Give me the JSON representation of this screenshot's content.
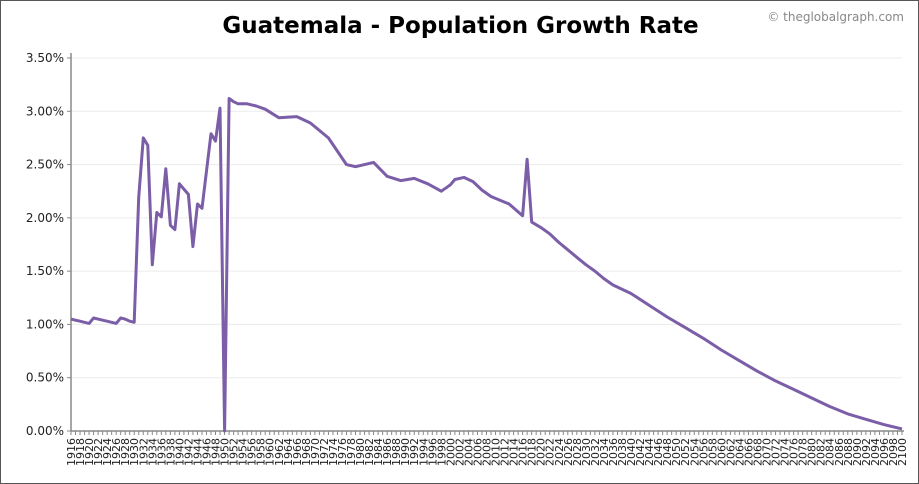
{
  "chart_data": {
    "type": "line",
    "title": "Guatemala - Population Growth Rate",
    "credit": "© theglobalgraph.com",
    "xlabel": "",
    "ylabel": "",
    "xlim": [
      1916,
      2100
    ],
    "ylim": [
      0,
      3.5
    ],
    "y_ticks": [
      "0.00%",
      "0.50%",
      "1.00%",
      "1.50%",
      "2.00%",
      "2.50%",
      "3.00%",
      "3.50%"
    ],
    "x_tick_step": 2,
    "grid": true,
    "line_color": "#7b5ea7",
    "series": [
      {
        "x": [
          1916,
          1917,
          1918,
          1919,
          1920,
          1921,
          1922,
          1923,
          1924,
          1925,
          1926,
          1927,
          1928,
          1929,
          1930,
          1931,
          1932,
          1933,
          1934,
          1935,
          1936,
          1937,
          1938,
          1939,
          1940,
          1941,
          1942,
          1943,
          1944,
          1945,
          1946,
          1947,
          1948,
          1949,
          1950,
          1951,
          1952,
          1953,
          1954,
          1955,
          1956,
          1957,
          1959,
          1962,
          1966,
          1969,
          1973,
          1977,
          1979,
          1983,
          1986,
          1989,
          1992,
          1995,
          1998,
          2000,
          2001,
          2003,
          2005,
          2007,
          2009,
          2013,
          2016,
          2017,
          2018,
          2020,
          2022,
          2024,
          2026,
          2028,
          2030,
          2032,
          2034,
          2036,
          2040,
          2044,
          2048,
          2052,
          2056,
          2060,
          2064,
          2068,
          2072,
          2076,
          2080,
          2084,
          2088,
          2092,
          2096,
          2100
        ],
        "y": [
          1.05,
          1.04,
          1.03,
          1.02,
          1.01,
          1.06,
          1.05,
          1.04,
          1.03,
          1.02,
          1.01,
          1.06,
          1.05,
          1.03,
          1.02,
          2.19,
          2.75,
          2.68,
          1.56,
          2.05,
          2.01,
          2.46,
          1.93,
          1.89,
          2.32,
          2.27,
          2.22,
          1.73,
          2.13,
          2.09,
          2.44,
          2.79,
          2.72,
          3.03,
          0.0,
          3.12,
          3.09,
          3.07,
          3.07,
          3.07,
          3.06,
          3.05,
          3.02,
          2.94,
          2.95,
          2.89,
          2.75,
          2.5,
          2.48,
          2.52,
          2.39,
          2.35,
          2.37,
          2.32,
          2.25,
          2.31,
          2.36,
          2.38,
          2.34,
          2.26,
          2.2,
          2.13,
          2.02,
          2.55,
          1.96,
          1.91,
          1.85,
          1.77,
          1.7,
          1.63,
          1.56,
          1.5,
          1.43,
          1.37,
          1.29,
          1.18,
          1.07,
          0.97,
          0.87,
          0.76,
          0.66,
          0.56,
          0.47,
          0.39,
          0.31,
          0.23,
          0.16,
          0.11,
          0.06,
          0.02
        ]
      }
    ]
  }
}
